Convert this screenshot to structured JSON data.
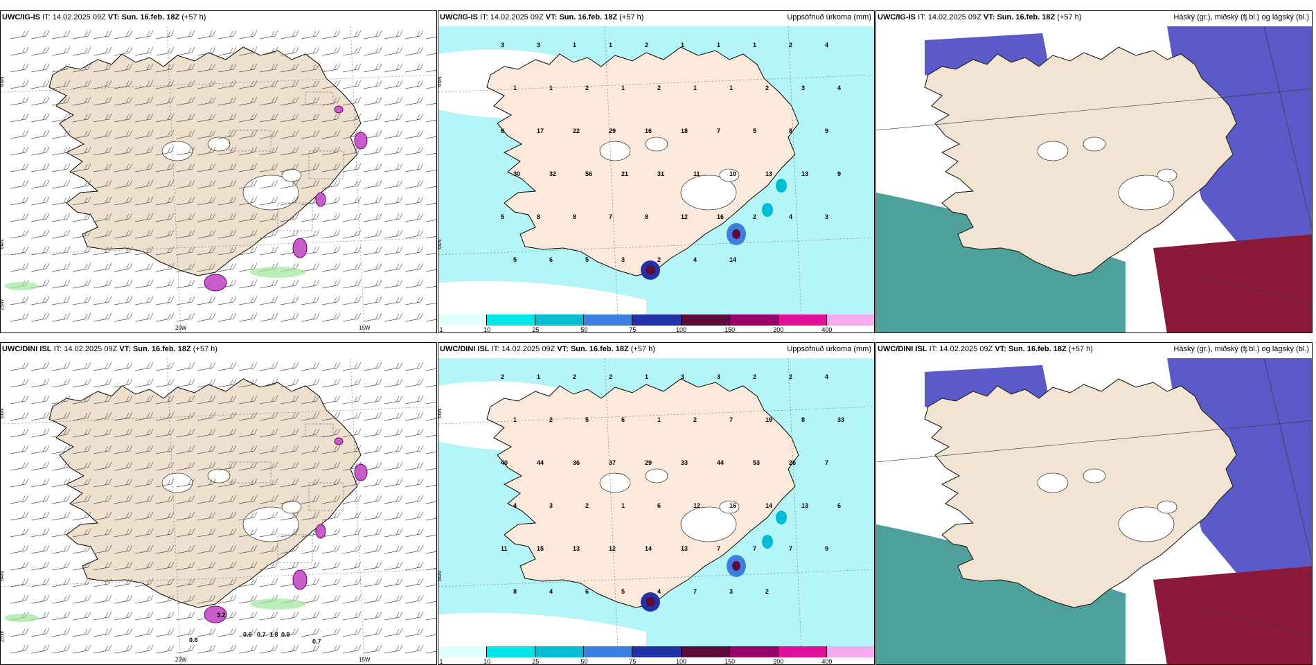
{
  "panels": [
    {
      "id": "p1",
      "model": "UWC/IG-IS",
      "it_label": "IT:",
      "it": "14.02.2025 09Z",
      "vt_label": "VT:",
      "vt": "Sun. 16.feb. 18Z",
      "lead": "(+57 h)",
      "right_title": "",
      "kind": "wind",
      "axis": {
        "lat1": "66N",
        "lat2": "64N",
        "lat3": "25W",
        "lon1": "20W",
        "lon2": "15W"
      }
    },
    {
      "id": "p2",
      "model": "UWC/IG-IS",
      "it_label": "IT:",
      "it": "14.02.2025 09Z",
      "vt_label": "VT:",
      "vt": "Sun. 16.feb. 18Z",
      "lead": "(+57 h)",
      "right_title": "Uppsöfnuð úrkoma (mm)",
      "kind": "precip",
      "axis": {
        "lat1": "66N",
        "lat2": "64N"
      },
      "values": [
        "3",
        "3",
        "1",
        "1",
        "2",
        "1",
        "1",
        "1",
        "2",
        "4",
        "1",
        "1",
        "2",
        "1",
        "2",
        "1",
        "1",
        "2",
        "3",
        "4",
        "6",
        "17",
        "22",
        "29",
        "16",
        "18",
        "7",
        "5",
        "8",
        "9",
        "30",
        "32",
        "56",
        "21",
        "31",
        "11",
        "10",
        "13",
        "13",
        "9",
        "5",
        "8",
        "8",
        "7",
        "8",
        "12",
        "16",
        "2",
        "4",
        "3",
        "5",
        "6",
        "5",
        "3",
        "2",
        "4",
        "14"
      ]
    },
    {
      "id": "p3",
      "model": "UWC/IG-IS",
      "it_label": "IT:",
      "it": "14.02.2025 09Z",
      "vt_label": "VT:",
      "vt": "Sun. 16.feb. 18Z",
      "lead": "(+57 h)",
      "right_title": "Háský (gr.), miðský (fj.bl.) og lágský (bl.)",
      "kind": "cloud"
    },
    {
      "id": "p4",
      "model": "UWC/DINI ISL",
      "it_label": "IT:",
      "it": "14.02.2025 09Z",
      "vt_label": "VT:",
      "vt": "Sun. 16.feb. 18Z",
      "lead": "(+57 h)",
      "right_title": "",
      "kind": "wind",
      "axis": {
        "lat1": "66N",
        "lat2": "64N",
        "lat3": "25W",
        "lon1": "20W",
        "lon2": "15W"
      },
      "labels": [
        "0.6",
        "0.6",
        "0.7",
        "1.8",
        "0.9",
        "0.7",
        "3.2"
      ]
    },
    {
      "id": "p5",
      "model": "UWC/DINI ISL",
      "it_label": "IT:",
      "it": "14.02.2025 09Z",
      "vt_label": "VT:",
      "vt": "Sun. 16.feb. 18Z",
      "lead": "(+57 h)",
      "right_title": "Uppsöfnuð úrkoma (mm)",
      "kind": "precip",
      "axis": {
        "lat1": "66N",
        "lat2": "64N"
      },
      "values": [
        "2",
        "1",
        "2",
        "2",
        "1",
        "3",
        "3",
        "2",
        "2",
        "4",
        "1",
        "2",
        "5",
        "6",
        "1",
        "2",
        "7",
        "19",
        "8",
        "33",
        "40",
        "44",
        "36",
        "37",
        "29",
        "33",
        "44",
        "53",
        "26",
        "7",
        "4",
        "3",
        "2",
        "1",
        "6",
        "12",
        "16",
        "14",
        "13",
        "6",
        "11",
        "15",
        "13",
        "12",
        "14",
        "13",
        "7",
        "7",
        "7",
        "9",
        "8",
        "4",
        "6",
        "5",
        "4",
        "7",
        "3",
        "2"
      ]
    },
    {
      "id": "p6",
      "model": "UWC/DINI ISL",
      "it_label": "IT:",
      "it": "14.02.2025 09Z",
      "vt_label": "VT:",
      "vt": "Sun. 16.feb. 18Z",
      "lead": "(+57 h)",
      "right_title": "Háský (gr.), miðský (fj.bl.) og lágský (bl.)",
      "kind": "cloud"
    }
  ],
  "colorbar": {
    "ticks": [
      "1",
      "10",
      "25",
      "50",
      "75",
      "100",
      "150",
      "200",
      "400"
    ],
    "colors": [
      "#e0ffff",
      "#00e5e5",
      "#00bcd4",
      "#3d7fe0",
      "#2233aa",
      "#5b0a3a",
      "#990066",
      "#e0109a",
      "#f5aaf0"
    ]
  },
  "colors": {
    "land": "#f2e3d3",
    "sea_precip": "#b4f5f7",
    "cloud_high": "#5a5ac8",
    "cloud_low": "#2f8f8a",
    "cloud_mid_red": "#8b1a3a"
  }
}
